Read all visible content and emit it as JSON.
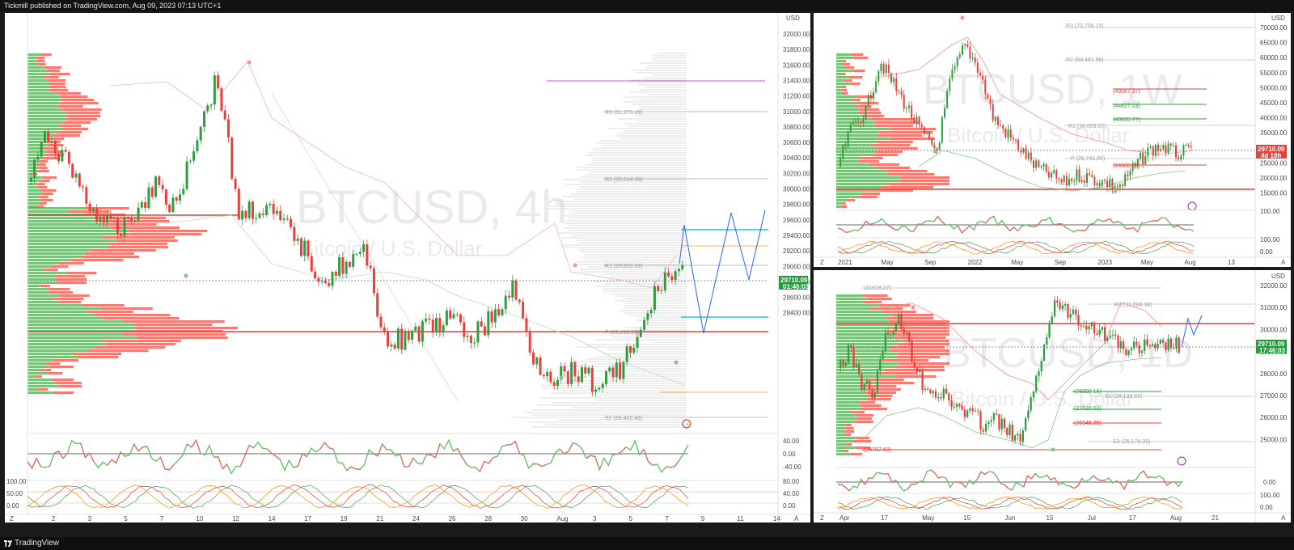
{
  "header": {
    "published_text": "Tickmill published on TradingView.com, Aug 09, 2023 07:13 UTC+1"
  },
  "footer": {
    "brand": "TradingView"
  },
  "colors": {
    "up": "#2e9e3e",
    "down": "#e8403b",
    "accent": "#2962ff",
    "price_tag_up": "#1f9d3a",
    "price_tag_down": "#e8403b"
  },
  "main_chart": {
    "watermark_symbol": "BTCUSD, 4h",
    "watermark_desc": "Bitcoin / U.S. Dollar",
    "currency": "USD",
    "price_ticks": [
      "32000.00",
      "31800.00",
      "31600.00",
      "31400.00",
      "31200.00",
      "31000.00",
      "30800.00",
      "30600.00",
      "30400.00",
      "30200.00",
      "30000.00",
      "29800.00",
      "29600.00",
      "29400.00",
      "29200.00",
      "29000.00",
      "28800.00",
      "28600.00",
      "28400.00"
    ],
    "time_ticks": [
      "2",
      "3",
      "5",
      "7",
      "10",
      "12",
      "14",
      "17",
      "19",
      "21",
      "24",
      "26",
      "28",
      "30",
      "Aug",
      "3",
      "5",
      "7",
      "9",
      "11",
      "14"
    ],
    "pivots": [
      {
        "label": "R3 (31,275.49)",
        "color": "#9e9e9e"
      },
      {
        "label": "R2 (30,654.49)",
        "color": "#9e9e9e"
      },
      {
        "label": "R1 (29,853.09)",
        "color": "#9e9e9e"
      },
      {
        "label": "P (29,233.69)",
        "color": "#9e9e9e"
      },
      {
        "label": "S1 (28,432.49)",
        "color": "#9e9e9e"
      }
    ],
    "last_price": "29710.09",
    "countdown": "01:46:03",
    "osc1_ticks": [
      "40.00",
      "0.00",
      "-40.00"
    ],
    "osc2_ticks": [
      "100.00",
      "50.00",
      "0.00",
      "80.00",
      "40.00",
      "0.00"
    ],
    "axis_btn_left": "Z",
    "axis_btn_right": "A"
  },
  "weekly_chart": {
    "watermark_symbol": "BTCUSD, 1W",
    "watermark_desc": "Bitcoin / U.S. Dollar",
    "currency": "USD",
    "price_ticks": [
      "70000.00",
      "65000.00",
      "60000.00",
      "55000.00",
      "50000.00",
      "45000.00",
      "40000.00",
      "35000.00",
      "30000.00",
      "25000.00",
      "20000.00",
      "15000.00"
    ],
    "time_ticks": [
      "2021",
      "May",
      "Sep",
      "2022",
      "May",
      "Sep",
      "2023",
      "May",
      "Aug",
      "13"
    ],
    "pivots": [
      {
        "label": "R3 (70,758.15)",
        "color": "#9e9e9e"
      },
      {
        "label": "R2 (59,481.56)",
        "color": "#9e9e9e"
      },
      {
        "label": "(49567.37)",
        "color": "#e8403b"
      },
      {
        "label": "(44827.03)",
        "color": "#2e9e3e"
      },
      {
        "label": "(40035.77)",
        "color": "#2e9e3e"
      },
      {
        "label": "R1 (38,609.97)",
        "color": "#9e9e9e"
      },
      {
        "label": "P (26,741.00)",
        "color": "#9e9e9e"
      },
      {
        "label": "(24800.00)",
        "color": "#e8403b"
      }
    ],
    "last_price": "29710.09",
    "countdown": "4d 18h",
    "osc1_ticks": [
      "100.00"
    ],
    "osc2_ticks": [
      "100.00",
      "0.00"
    ],
    "axis_btn_left": "Z",
    "axis_btn_right": "A"
  },
  "daily_chart": {
    "watermark_symbol": "BTCUSD, 1D",
    "watermark_desc": "Bitcoin / U.S. Dollar",
    "currency": "USD",
    "price_ticks": [
      "32000.00",
      "31000.00",
      "30000.00",
      "29000.00",
      "28000.00",
      "27000.00",
      "26000.00",
      "25000.00"
    ],
    "time_ticks": [
      "Apr",
      "17",
      "May",
      "15",
      "Jun",
      "15",
      "Jul",
      "17",
      "Aug",
      "21"
    ],
    "pivots": [
      {
        "label": "(31818.27)",
        "color": "#9e9e9e"
      },
      {
        "label": "R3 (31,088.38)",
        "color": "#9e9e9e"
      },
      {
        "label": "(28300.16)",
        "color": "#2e9e3e"
      },
      {
        "label": "S1 (28,133.59)",
        "color": "#9e9e9e"
      },
      {
        "label": "(27626.02)",
        "color": "#2e9e3e"
      },
      {
        "label": "(26948.35)",
        "color": "#e8403b"
      },
      {
        "label": "S3 (25,178.35)",
        "color": "#9e9e9e"
      },
      {
        "label": "(24797.60)",
        "color": "#e8403b"
      }
    ],
    "last_price": "29710.09",
    "countdown": "17:46:03",
    "osc1_ticks": [
      "0.00"
    ],
    "osc2_ticks": [
      "100.00",
      "0.00"
    ],
    "axis_btn_left": "Z",
    "axis_btn_right": "A"
  }
}
